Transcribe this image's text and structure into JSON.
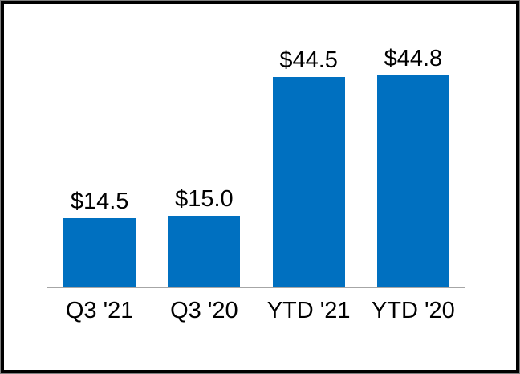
{
  "chart_data": {
    "type": "bar",
    "title": "",
    "categories": [
      "Q3 '21",
      "Q3 '20",
      "YTD '21",
      "YTD '20"
    ],
    "values": [
      14.5,
      15.0,
      44.5,
      44.8
    ],
    "value_labels": [
      "$14.5",
      "$15.0",
      "$44.5",
      "$44.8"
    ],
    "xlabel": "",
    "ylabel": "",
    "ylim": [
      0,
      60
    ],
    "grid": false,
    "legend": false,
    "bar_color": "#0070C0",
    "axis_line_color": "#A6A6A6",
    "text_color": "#000000",
    "frame_color": "#000000",
    "background_color": "#FFFFFF"
  }
}
